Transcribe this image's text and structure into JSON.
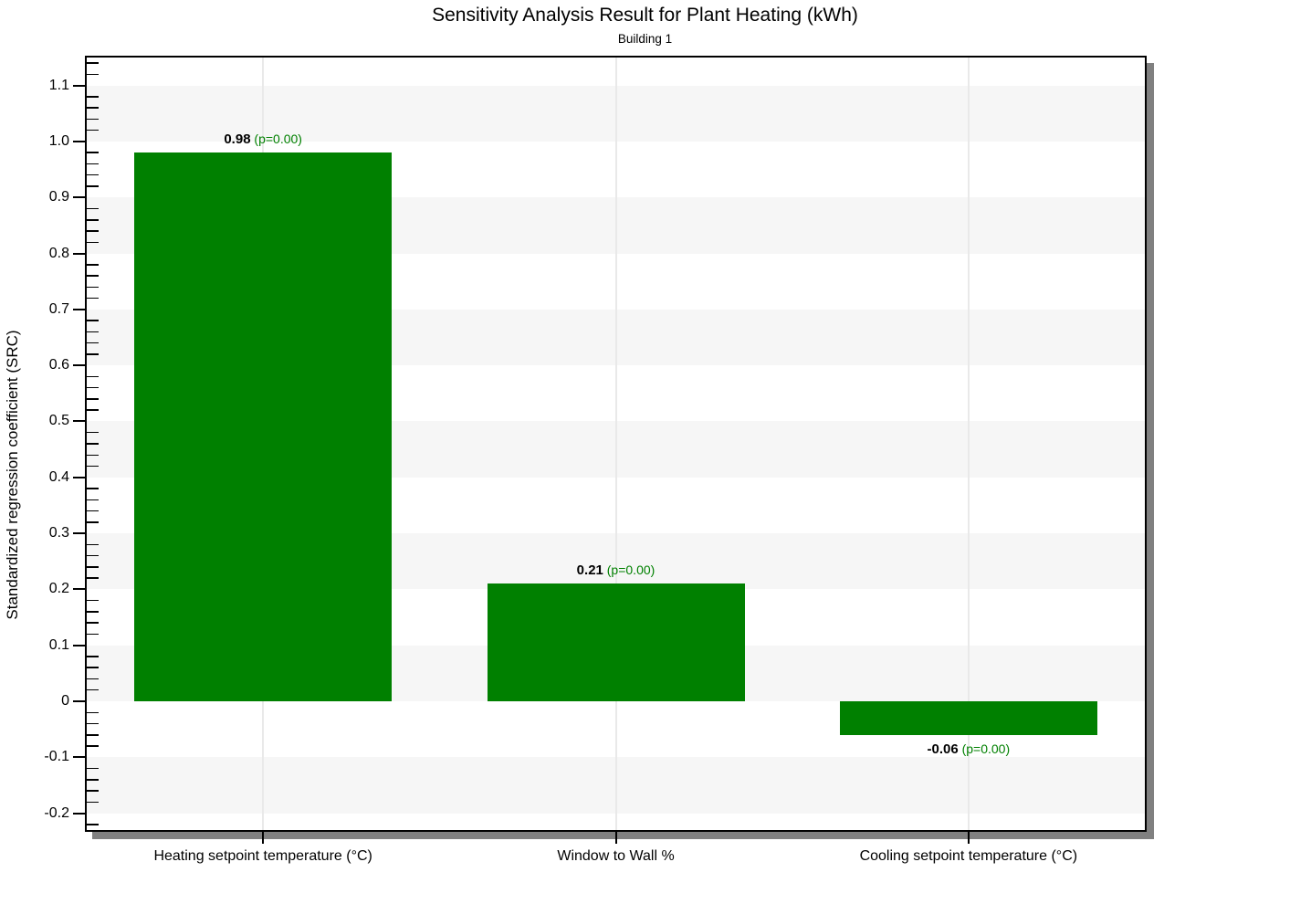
{
  "chart_data": {
    "type": "bar",
    "title": "Sensitivity Analysis Result for Plant Heating (kWh)",
    "subtitle": "Building 1",
    "ylabel": "Standardized regression coefficient (SRC)",
    "xlabel": "",
    "categories": [
      "Heating setpoint temperature (°C)",
      "Window to Wall %",
      "Cooling setpoint temperature (°C)"
    ],
    "values": [
      0.98,
      0.21,
      -0.06
    ],
    "value_labels": [
      "0.98",
      "0.21",
      "-0.06"
    ],
    "p_labels": [
      "(p=0.00)",
      "(p=0.00)",
      "(p=0.00)"
    ],
    "ylim": [
      -0.23,
      1.15
    ],
    "y_major_step": 0.1,
    "y_minor_step": 0.02,
    "grid": "alternating horizontal bands every 0.1 + vertical gridlines at category centers",
    "legend": "none",
    "colors": {
      "bar": "#008000",
      "value_label": "#000000",
      "p_label": "#008000",
      "band": "#f6f6f6",
      "gridline": "#e9e9e9",
      "axis": "#000000",
      "shadow": "#808080",
      "background": "#ffffff"
    }
  }
}
